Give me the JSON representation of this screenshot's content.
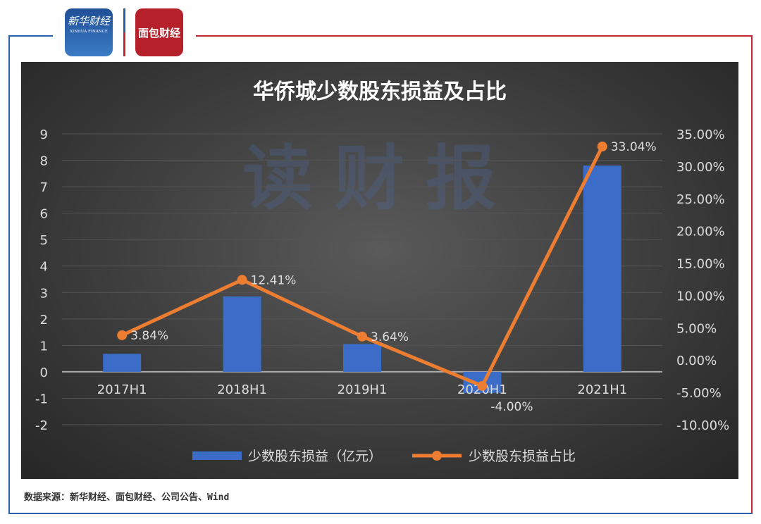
{
  "logos": {
    "xinhua": "新华财经",
    "xinhua_en": "XINHUA FINANCE",
    "mianbao": "面包财经"
  },
  "watermark": "读财报",
  "source": "数据来源：新华财经、面包财经、公司公告、Wind",
  "colors": {
    "bar": "#3a6cc8",
    "line": "#ed7d31",
    "background": "#3a3a3a"
  },
  "chart_data": {
    "type": "bar+line",
    "title": "华侨城少数股东损益及占比",
    "categories": [
      "2017H1",
      "2018H1",
      "2019H1",
      "2020H1",
      "2021H1"
    ],
    "series": [
      {
        "name": "少数股东损益（亿元）",
        "type": "bar",
        "axis": "left",
        "values": [
          0.68,
          2.85,
          1.05,
          -0.8,
          7.8
        ]
      },
      {
        "name": "少数股东损益占比",
        "type": "line",
        "axis": "right",
        "values": [
          3.84,
          12.41,
          3.64,
          -4.0,
          33.04
        ],
        "labels": [
          "3.84%",
          "12.41%",
          "3.64%",
          "-4.00%",
          "33.04%"
        ]
      }
    ],
    "y_left": {
      "range": [
        -2,
        9
      ],
      "ticks": [
        "9",
        "8",
        "7",
        "6",
        "5",
        "4",
        "3",
        "2",
        "1",
        "0",
        "-1",
        "-2"
      ]
    },
    "y_right": {
      "range": [
        -10,
        35
      ],
      "ticks": [
        "35.00%",
        "30.00%",
        "25.00%",
        "20.00%",
        "15.00%",
        "10.00%",
        "5.00%",
        "0.00%",
        "-5.00%",
        "-10.00%"
      ]
    },
    "grid": true,
    "legend": "bottom"
  }
}
